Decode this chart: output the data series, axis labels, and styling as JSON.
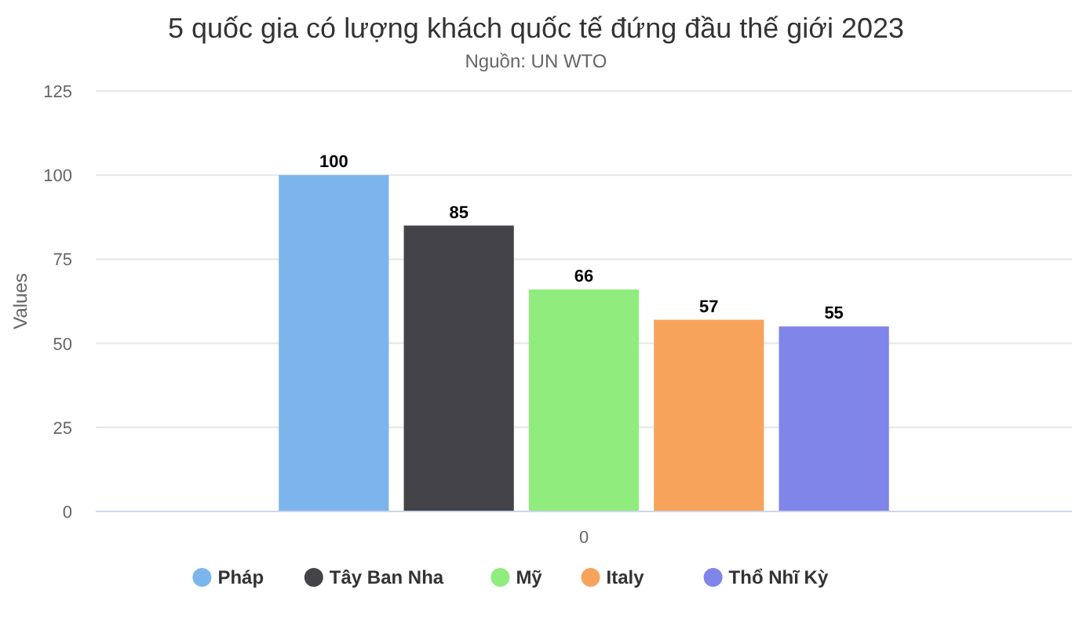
{
  "chart_data": {
    "type": "bar",
    "title": "5 quốc gia có lượng khách quốc tế đứng đầu thế giới 2023",
    "subtitle": "Nguồn: UN WTO",
    "ylabel": "Values",
    "categories": [
      "0"
    ],
    "series": [
      {
        "name": "Pháp",
        "color": "#7cb5ec",
        "values": [
          100
        ]
      },
      {
        "name": "Tây Ban Nha",
        "color": "#434348",
        "values": [
          85
        ]
      },
      {
        "name": "Mỹ",
        "color": "#90ed7d",
        "values": [
          66
        ]
      },
      {
        "name": "Italy",
        "color": "#f7a35c",
        "values": [
          57
        ]
      },
      {
        "name": "Thổ Nhĩ Kỳ",
        "color": "#8085e9",
        "values": [
          55
        ]
      }
    ],
    "ylim": [
      0,
      125
    ],
    "yticks": [
      0,
      25,
      50,
      75,
      100,
      125
    ],
    "grid": "y",
    "legend": "bottom",
    "data_labels": true
  }
}
